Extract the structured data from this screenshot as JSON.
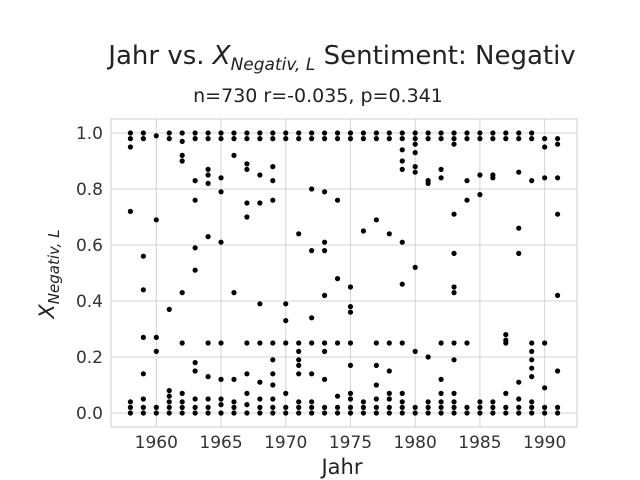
{
  "chart_data": {
    "type": "scatter",
    "title_prefix": "Jahr vs. ",
    "title_math_base": "X",
    "title_math_sub": "Negativ, L",
    "title_suffix": " Sentiment: Negativ",
    "subtitle": "n=730 r=-0.035, p=0.341",
    "xlabel": "Jahr",
    "ylabel_base": "X",
    "ylabel_sub": "Negativ, L",
    "xlim": [
      1956.5,
      1992.5
    ],
    "ylim": [
      -0.05,
      1.05
    ],
    "xticks": [
      1960,
      1965,
      1970,
      1975,
      1980,
      1985,
      1990
    ],
    "yticks": [
      "0.0",
      "0.2",
      "0.4",
      "0.6",
      "0.8",
      "1.0"
    ],
    "grid": true,
    "marker_color": "#000000",
    "series": [
      {
        "points": [
          [
            1958,
            0.0
          ],
          [
            1958,
            0.02
          ],
          [
            1958,
            0.04
          ],
          [
            1958,
            0.72
          ],
          [
            1958,
            0.95
          ],
          [
            1958,
            0.98
          ],
          [
            1958,
            1.0
          ],
          [
            1959,
            0.0
          ],
          [
            1959,
            0.02
          ],
          [
            1959,
            0.05
          ],
          [
            1959,
            0.14
          ],
          [
            1959,
            0.27
          ],
          [
            1959,
            0.44
          ],
          [
            1959,
            0.56
          ],
          [
            1959,
            0.98
          ],
          [
            1959,
            1.0
          ],
          [
            1960,
            0.0
          ],
          [
            1960,
            0.02
          ],
          [
            1960,
            0.22
          ],
          [
            1960,
            0.27
          ],
          [
            1960,
            0.69
          ],
          [
            1960,
            0.99
          ],
          [
            1961,
            0.0
          ],
          [
            1961,
            0.02
          ],
          [
            1961,
            0.04
          ],
          [
            1961,
            0.06
          ],
          [
            1961,
            0.08
          ],
          [
            1961,
            0.37
          ],
          [
            1961,
            0.98
          ],
          [
            1961,
            1.0
          ],
          [
            1962,
            0.0
          ],
          [
            1962,
            0.02
          ],
          [
            1962,
            0.04
          ],
          [
            1962,
            0.07
          ],
          [
            1962,
            0.25
          ],
          [
            1962,
            0.43
          ],
          [
            1962,
            0.9
          ],
          [
            1962,
            0.92
          ],
          [
            1962,
            0.97
          ],
          [
            1962,
            1.0
          ],
          [
            1963,
            0.0
          ],
          [
            1963,
            0.02
          ],
          [
            1963,
            0.05
          ],
          [
            1963,
            0.15
          ],
          [
            1963,
            0.18
          ],
          [
            1963,
            0.51
          ],
          [
            1963,
            0.59
          ],
          [
            1963,
            0.76
          ],
          [
            1963,
            0.83
          ],
          [
            1963,
            0.98
          ],
          [
            1963,
            1.0
          ],
          [
            1964,
            0.0
          ],
          [
            1964,
            0.02
          ],
          [
            1964,
            0.05
          ],
          [
            1964,
            0.13
          ],
          [
            1964,
            0.25
          ],
          [
            1964,
            0.63
          ],
          [
            1964,
            0.82
          ],
          [
            1964,
            0.85
          ],
          [
            1964,
            0.87
          ],
          [
            1964,
            0.98
          ],
          [
            1964,
            1.0
          ],
          [
            1965,
            0.0
          ],
          [
            1965,
            0.03
          ],
          [
            1965,
            0.05
          ],
          [
            1965,
            0.12
          ],
          [
            1965,
            0.25
          ],
          [
            1965,
            0.61
          ],
          [
            1965,
            0.79
          ],
          [
            1965,
            0.84
          ],
          [
            1965,
            0.98
          ],
          [
            1965,
            1.0
          ],
          [
            1966,
            0.0
          ],
          [
            1966,
            0.02
          ],
          [
            1966,
            0.04
          ],
          [
            1966,
            0.12
          ],
          [
            1966,
            0.43
          ],
          [
            1966,
            0.92
          ],
          [
            1966,
            0.98
          ],
          [
            1966,
            1.0
          ],
          [
            1967,
            0.0
          ],
          [
            1967,
            0.03
          ],
          [
            1967,
            0.07
          ],
          [
            1967,
            0.14
          ],
          [
            1967,
            0.25
          ],
          [
            1967,
            0.7
          ],
          [
            1967,
            0.75
          ],
          [
            1967,
            0.87
          ],
          [
            1967,
            0.89
          ],
          [
            1967,
            0.98
          ],
          [
            1967,
            1.0
          ],
          [
            1968,
            0.0
          ],
          [
            1968,
            0.02
          ],
          [
            1968,
            0.05
          ],
          [
            1968,
            0.11
          ],
          [
            1968,
            0.25
          ],
          [
            1968,
            0.39
          ],
          [
            1968,
            0.75
          ],
          [
            1968,
            0.85
          ],
          [
            1968,
            0.98
          ],
          [
            1968,
            1.0
          ],
          [
            1969,
            0.0
          ],
          [
            1969,
            0.02
          ],
          [
            1969,
            0.05
          ],
          [
            1969,
            0.1
          ],
          [
            1969,
            0.14
          ],
          [
            1969,
            0.19
          ],
          [
            1969,
            0.25
          ],
          [
            1969,
            0.76
          ],
          [
            1969,
            0.83
          ],
          [
            1969,
            0.88
          ],
          [
            1969,
            0.98
          ],
          [
            1969,
            1.0
          ],
          [
            1970,
            0.0
          ],
          [
            1970,
            0.02
          ],
          [
            1970,
            0.07
          ],
          [
            1970,
            0.25
          ],
          [
            1970,
            0.33
          ],
          [
            1970,
            0.39
          ],
          [
            1970,
            0.98
          ],
          [
            1970,
            1.0
          ],
          [
            1971,
            0.0
          ],
          [
            1971,
            0.02
          ],
          [
            1971,
            0.04
          ],
          [
            1971,
            0.14
          ],
          [
            1971,
            0.17
          ],
          [
            1971,
            0.19
          ],
          [
            1971,
            0.22
          ],
          [
            1971,
            0.25
          ],
          [
            1971,
            0.64
          ],
          [
            1971,
            0.98
          ],
          [
            1971,
            1.0
          ],
          [
            1972,
            0.0
          ],
          [
            1972,
            0.02
          ],
          [
            1972,
            0.04
          ],
          [
            1972,
            0.14
          ],
          [
            1972,
            0.25
          ],
          [
            1972,
            0.34
          ],
          [
            1972,
            0.58
          ],
          [
            1972,
            0.8
          ],
          [
            1972,
            0.98
          ],
          [
            1972,
            1.0
          ],
          [
            1973,
            0.0
          ],
          [
            1973,
            0.02
          ],
          [
            1973,
            0.12
          ],
          [
            1973,
            0.22
          ],
          [
            1973,
            0.25
          ],
          [
            1973,
            0.42
          ],
          [
            1973,
            0.58
          ],
          [
            1973,
            0.61
          ],
          [
            1973,
            0.79
          ],
          [
            1973,
            0.98
          ],
          [
            1973,
            1.0
          ],
          [
            1974,
            0.0
          ],
          [
            1974,
            0.02
          ],
          [
            1974,
            0.06
          ],
          [
            1974,
            0.25
          ],
          [
            1974,
            0.48
          ],
          [
            1974,
            0.76
          ],
          [
            1974,
            0.98
          ],
          [
            1974,
            1.0
          ],
          [
            1975,
            0.0
          ],
          [
            1975,
            0.02
          ],
          [
            1975,
            0.05
          ],
          [
            1975,
            0.07
          ],
          [
            1975,
            0.17
          ],
          [
            1975,
            0.25
          ],
          [
            1975,
            0.36
          ],
          [
            1975,
            0.38
          ],
          [
            1975,
            0.45
          ],
          [
            1975,
            0.98
          ],
          [
            1975,
            1.0
          ],
          [
            1976,
            0.0
          ],
          [
            1976,
            0.02
          ],
          [
            1976,
            0.04
          ],
          [
            1976,
            0.65
          ],
          [
            1976,
            0.98
          ],
          [
            1976,
            1.0
          ],
          [
            1977,
            0.0
          ],
          [
            1977,
            0.02
          ],
          [
            1977,
            0.05
          ],
          [
            1977,
            0.1
          ],
          [
            1977,
            0.17
          ],
          [
            1977,
            0.25
          ],
          [
            1977,
            0.69
          ],
          [
            1977,
            0.98
          ],
          [
            1977,
            1.0
          ],
          [
            1978,
            0.0
          ],
          [
            1978,
            0.02
          ],
          [
            1978,
            0.05
          ],
          [
            1978,
            0.07
          ],
          [
            1978,
            0.15
          ],
          [
            1978,
            0.25
          ],
          [
            1978,
            0.64
          ],
          [
            1978,
            0.98
          ],
          [
            1978,
            1.0
          ],
          [
            1979,
            0.0
          ],
          [
            1979,
            0.02
          ],
          [
            1979,
            0.04
          ],
          [
            1979,
            0.07
          ],
          [
            1979,
            0.25
          ],
          [
            1979,
            0.46
          ],
          [
            1979,
            0.61
          ],
          [
            1979,
            0.87
          ],
          [
            1979,
            0.9
          ],
          [
            1979,
            0.94
          ],
          [
            1979,
            0.98
          ],
          [
            1979,
            1.0
          ],
          [
            1980,
            0.0
          ],
          [
            1980,
            0.02
          ],
          [
            1980,
            0.22
          ],
          [
            1980,
            0.52
          ],
          [
            1980,
            0.86
          ],
          [
            1980,
            0.88
          ],
          [
            1980,
            0.93
          ],
          [
            1980,
            0.96
          ],
          [
            1980,
            0.98
          ],
          [
            1980,
            1.0
          ],
          [
            1981,
            0.0
          ],
          [
            1981,
            0.02
          ],
          [
            1981,
            0.04
          ],
          [
            1981,
            0.2
          ],
          [
            1981,
            0.82
          ],
          [
            1981,
            0.83
          ],
          [
            1981,
            0.98
          ],
          [
            1981,
            1.0
          ],
          [
            1982,
            0.0
          ],
          [
            1982,
            0.02
          ],
          [
            1982,
            0.04
          ],
          [
            1982,
            0.07
          ],
          [
            1982,
            0.12
          ],
          [
            1982,
            0.25
          ],
          [
            1982,
            0.84
          ],
          [
            1982,
            0.87
          ],
          [
            1982,
            0.98
          ],
          [
            1982,
            1.0
          ],
          [
            1983,
            0.0
          ],
          [
            1983,
            0.02
          ],
          [
            1983,
            0.04
          ],
          [
            1983,
            0.07
          ],
          [
            1983,
            0.19
          ],
          [
            1983,
            0.25
          ],
          [
            1983,
            0.43
          ],
          [
            1983,
            0.45
          ],
          [
            1983,
            0.57
          ],
          [
            1983,
            0.71
          ],
          [
            1983,
            0.96
          ],
          [
            1983,
            0.98
          ],
          [
            1983,
            1.0
          ],
          [
            1984,
            0.0
          ],
          [
            1984,
            0.02
          ],
          [
            1984,
            0.25
          ],
          [
            1984,
            0.76
          ],
          [
            1984,
            0.83
          ],
          [
            1984,
            0.98
          ],
          [
            1984,
            1.0
          ],
          [
            1985,
            0.0
          ],
          [
            1985,
            0.02
          ],
          [
            1985,
            0.04
          ],
          [
            1985,
            0.78
          ],
          [
            1985,
            0.85
          ],
          [
            1985,
            0.98
          ],
          [
            1985,
            1.0
          ],
          [
            1986,
            0.0
          ],
          [
            1986,
            0.02
          ],
          [
            1986,
            0.04
          ],
          [
            1986,
            0.84
          ],
          [
            1986,
            0.85
          ],
          [
            1986,
            0.98
          ],
          [
            1986,
            1.0
          ],
          [
            1987,
            0.0
          ],
          [
            1987,
            0.02
          ],
          [
            1987,
            0.07
          ],
          [
            1987,
            0.25
          ],
          [
            1987,
            0.26
          ],
          [
            1987,
            0.28
          ],
          [
            1987,
            0.98
          ],
          [
            1987,
            1.0
          ],
          [
            1988,
            0.0
          ],
          [
            1988,
            0.02
          ],
          [
            1988,
            0.05
          ],
          [
            1988,
            0.11
          ],
          [
            1988,
            0.57
          ],
          [
            1988,
            0.66
          ],
          [
            1988,
            0.86
          ],
          [
            1988,
            0.98
          ],
          [
            1988,
            1.0
          ],
          [
            1989,
            0.0
          ],
          [
            1989,
            0.02
          ],
          [
            1989,
            0.04
          ],
          [
            1989,
            0.13
          ],
          [
            1989,
            0.16
          ],
          [
            1989,
            0.19
          ],
          [
            1989,
            0.22
          ],
          [
            1989,
            0.25
          ],
          [
            1989,
            0.83
          ],
          [
            1989,
            0.98
          ],
          [
            1989,
            1.0
          ],
          [
            1990,
            0.0
          ],
          [
            1990,
            0.02
          ],
          [
            1990,
            0.09
          ],
          [
            1990,
            0.25
          ],
          [
            1990,
            0.84
          ],
          [
            1990,
            0.95
          ],
          [
            1990,
            0.98
          ],
          [
            1991,
            0.0
          ],
          [
            1991,
            0.02
          ],
          [
            1991,
            0.15
          ],
          [
            1991,
            0.42
          ],
          [
            1991,
            0.71
          ],
          [
            1991,
            0.84
          ],
          [
            1991,
            0.96
          ],
          [
            1991,
            0.98
          ]
        ]
      }
    ]
  }
}
